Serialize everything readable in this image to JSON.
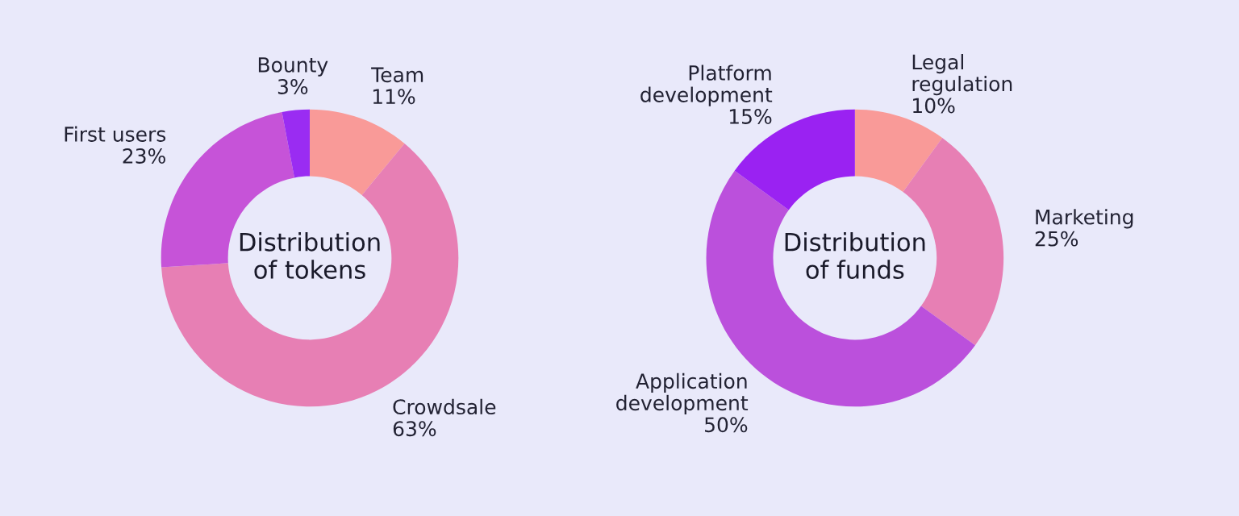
{
  "chart_data": [
    {
      "type": "donut",
      "title": "Distribution\nof tokens",
      "categories": [
        "Team",
        "Crowdsale",
        "First users",
        "Bounty"
      ],
      "values": [
        11,
        63,
        23,
        3
      ],
      "value_labels": [
        "11%",
        "63%",
        "23%",
        "3%"
      ],
      "colors": [
        "#f99a98",
        "#e77fb4",
        "#c653d8",
        "#9a2cf2"
      ]
    },
    {
      "type": "donut",
      "title": "Distribution\nof funds",
      "categories": [
        "Legal regulation",
        "Marketing",
        "Application development",
        "Platform development"
      ],
      "values": [
        10,
        25,
        50,
        15
      ],
      "value_labels": [
        "10%",
        "25%",
        "50%",
        "15%"
      ],
      "colors": [
        "#f99a98",
        "#e77fb4",
        "#bb50dc",
        "#9a22f2"
      ]
    }
  ]
}
